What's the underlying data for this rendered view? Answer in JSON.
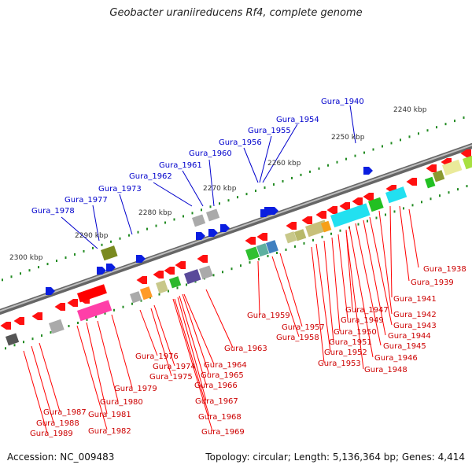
{
  "title": "Geobacter uraniireducens Rf4, complete genome",
  "footer": {
    "accession": "Accession: NC_009483",
    "summary": "Topology: circular; Length: 5,136,364 bp; Genes: 4,414"
  },
  "scale_labels": [
    "2240 kbp",
    "2250 kbp",
    "2260 kbp",
    "2270 kbp",
    "2280 kbp",
    "2290 kbp",
    "2300 kbp"
  ],
  "top_labels": [
    "Gura_1940",
    "Gura_1954",
    "Gura_1955",
    "Gura_1956",
    "Gura_1960",
    "Gura_1961",
    "Gura_1962",
    "Gura_1973",
    "Gura_1977",
    "Gura_1978"
  ],
  "bottom_labels": [
    "Gura_1938",
    "Gura_1939",
    "Gura_1941",
    "Gura_1942",
    "Gura_1943",
    "Gura_1944",
    "Gura_1945",
    "Gura_1946",
    "Gura_1948",
    "Gura_1947",
    "Gura_1949",
    "Gura_1950",
    "Gura_1951",
    "Gura_1952",
    "Gura_1953",
    "Gura_1957",
    "Gura_1958",
    "Gura_1959",
    "Gura_1963",
    "Gura_1964",
    "Gura_1965",
    "Gura_1966",
    "Gura_1967",
    "Gura_1968",
    "Gura_1969",
    "Gura_1974",
    "Gura_1975",
    "Gura_1976",
    "Gura_1979",
    "Gura_1980",
    "Gura_1981",
    "Gura_1982",
    "Gura_1987",
    "Gura_1988",
    "Gura_1989"
  ],
  "colors": {
    "backbone": "#8a8a8a",
    "forward_label": "#0000cc",
    "reverse_label": "#cc0000",
    "cds": "#ff0000",
    "tick": "#228b22"
  }
}
